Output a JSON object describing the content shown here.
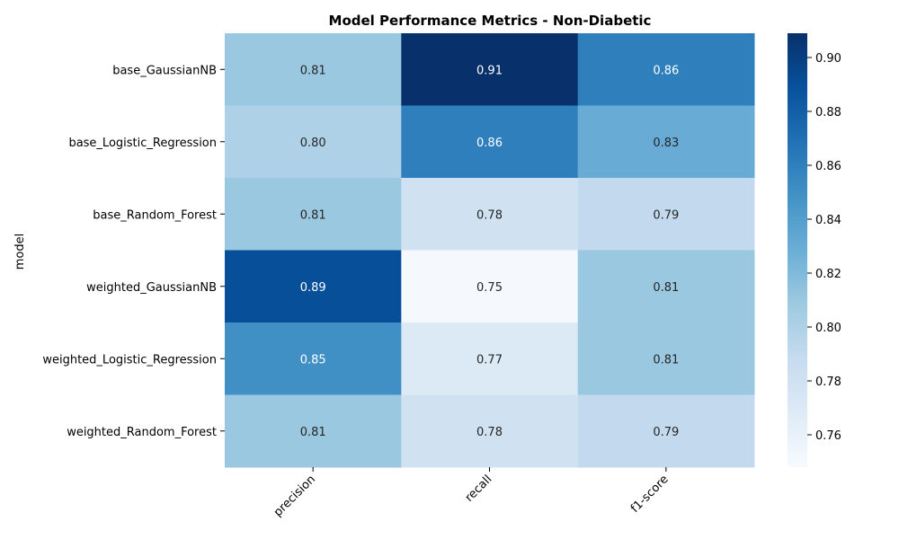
{
  "chart_data": {
    "type": "heatmap",
    "title": "Model Performance Metrics - Non-Diabetic",
    "ylabel": "model",
    "xlabel": "",
    "columns": [
      "precision",
      "recall",
      "f1-score"
    ],
    "rows": [
      "base_GaussianNB",
      "base_Logistic_Regression",
      "base_Random_Forest",
      "weighted_GaussianNB",
      "weighted_Logistic_Regression",
      "weighted_Random_Forest"
    ],
    "values": [
      [
        0.81,
        0.91,
        0.86
      ],
      [
        0.8,
        0.86,
        0.83
      ],
      [
        0.81,
        0.78,
        0.79
      ],
      [
        0.89,
        0.75,
        0.81
      ],
      [
        0.85,
        0.77,
        0.81
      ],
      [
        0.81,
        0.78,
        0.79
      ]
    ],
    "labels": [
      [
        "0.81",
        "0.91",
        "0.86"
      ],
      [
        "0.80",
        "0.86",
        "0.83"
      ],
      [
        "0.81",
        "0.78",
        "0.79"
      ],
      [
        "0.89",
        "0.75",
        "0.81"
      ],
      [
        "0.85",
        "0.77",
        "0.81"
      ],
      [
        "0.81",
        "0.78",
        "0.79"
      ]
    ],
    "colorscale": "Blues",
    "vmin": 0.748,
    "vmax": 0.909,
    "colorbar_ticks": [
      {
        "value": 0.76,
        "label": "0.76"
      },
      {
        "value": 0.78,
        "label": "0.78"
      },
      {
        "value": 0.8,
        "label": "0.80"
      },
      {
        "value": 0.82,
        "label": "0.82"
      },
      {
        "value": 0.84,
        "label": "0.84"
      },
      {
        "value": 0.86,
        "label": "0.86"
      },
      {
        "value": 0.88,
        "label": "0.88"
      },
      {
        "value": 0.9,
        "label": "0.90"
      }
    ],
    "grid": false,
    "colorbar_position": "right"
  }
}
